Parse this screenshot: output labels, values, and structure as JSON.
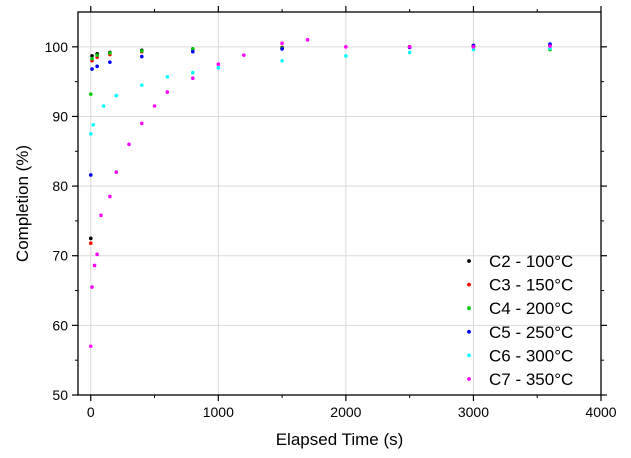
{
  "chart_data": {
    "type": "scatter",
    "title": "",
    "xlabel": "Elapsed Time (s)",
    "ylabel": "Completion (%)",
    "xlim": [
      -100,
      4000
    ],
    "ylim": [
      50,
      105
    ],
    "x_ticks": [
      0,
      1000,
      2000,
      3000,
      4000
    ],
    "y_ticks": [
      50,
      60,
      70,
      80,
      90,
      100
    ],
    "grid": true,
    "legend_position": "bottom-right",
    "series": [
      {
        "name": "C2 - 100°C",
        "color": "#000000",
        "points": [
          [
            0,
            72.5
          ],
          [
            10,
            98.7
          ],
          [
            50,
            99.0
          ],
          [
            150,
            99.2
          ],
          [
            400,
            99.5
          ],
          [
            800,
            99.7
          ],
          [
            1500,
            99.9
          ],
          [
            2500,
            100.0
          ],
          [
            3000,
            100.2
          ],
          [
            3600,
            100.3
          ]
        ]
      },
      {
        "name": "C3 - 150°C",
        "color": "#ff0000",
        "points": [
          [
            0,
            71.8
          ],
          [
            10,
            98.0
          ],
          [
            50,
            98.5
          ],
          [
            150,
            98.9
          ],
          [
            400,
            99.3
          ],
          [
            800,
            99.6
          ],
          [
            1500,
            99.8
          ],
          [
            2500,
            100.0
          ],
          [
            3000,
            100.1
          ],
          [
            3600,
            100.2
          ]
        ]
      },
      {
        "name": "C4 - 200°C",
        "color": "#00cc00",
        "points": [
          [
            0,
            93.2
          ],
          [
            10,
            98.3
          ],
          [
            50,
            98.8
          ],
          [
            150,
            99.1
          ],
          [
            400,
            99.4
          ],
          [
            800,
            99.7
          ],
          [
            1500,
            99.8
          ],
          [
            2500,
            99.9
          ],
          [
            3000,
            100.0
          ],
          [
            3600,
            99.6
          ]
        ]
      },
      {
        "name": "C5 - 250°C",
        "color": "#0000ff",
        "points": [
          [
            0,
            81.6
          ],
          [
            10,
            96.8
          ],
          [
            50,
            97.2
          ],
          [
            150,
            97.8
          ],
          [
            400,
            98.6
          ],
          [
            800,
            99.3
          ],
          [
            1500,
            99.7
          ],
          [
            2500,
            99.9
          ],
          [
            3000,
            100.2
          ],
          [
            3600,
            100.4
          ]
        ]
      },
      {
        "name": "C6 - 300°C",
        "color": "#00ffff",
        "points": [
          [
            0,
            87.5
          ],
          [
            20,
            88.8
          ],
          [
            100,
            91.5
          ],
          [
            200,
            93.0
          ],
          [
            400,
            94.5
          ],
          [
            600,
            95.7
          ],
          [
            800,
            96.3
          ],
          [
            1000,
            97.0
          ],
          [
            1500,
            98.0
          ],
          [
            2000,
            98.7
          ],
          [
            2500,
            99.2
          ],
          [
            3000,
            99.6
          ],
          [
            3600,
            99.8
          ]
        ]
      },
      {
        "name": "C7 - 350°C",
        "color": "#ff00ff",
        "points": [
          [
            0,
            57.0
          ],
          [
            10,
            65.5
          ],
          [
            30,
            68.6
          ],
          [
            50,
            70.2
          ],
          [
            80,
            75.8
          ],
          [
            150,
            78.5
          ],
          [
            200,
            82.0
          ],
          [
            300,
            86.0
          ],
          [
            400,
            89.0
          ],
          [
            500,
            91.5
          ],
          [
            600,
            93.5
          ],
          [
            800,
            95.5
          ],
          [
            1000,
            97.5
          ],
          [
            1200,
            98.8
          ],
          [
            1500,
            100.5
          ],
          [
            1700,
            101.0
          ],
          [
            2000,
            100.0
          ],
          [
            2500,
            100.0
          ],
          [
            3000,
            100.0
          ],
          [
            3600,
            100.1
          ]
        ]
      }
    ]
  }
}
